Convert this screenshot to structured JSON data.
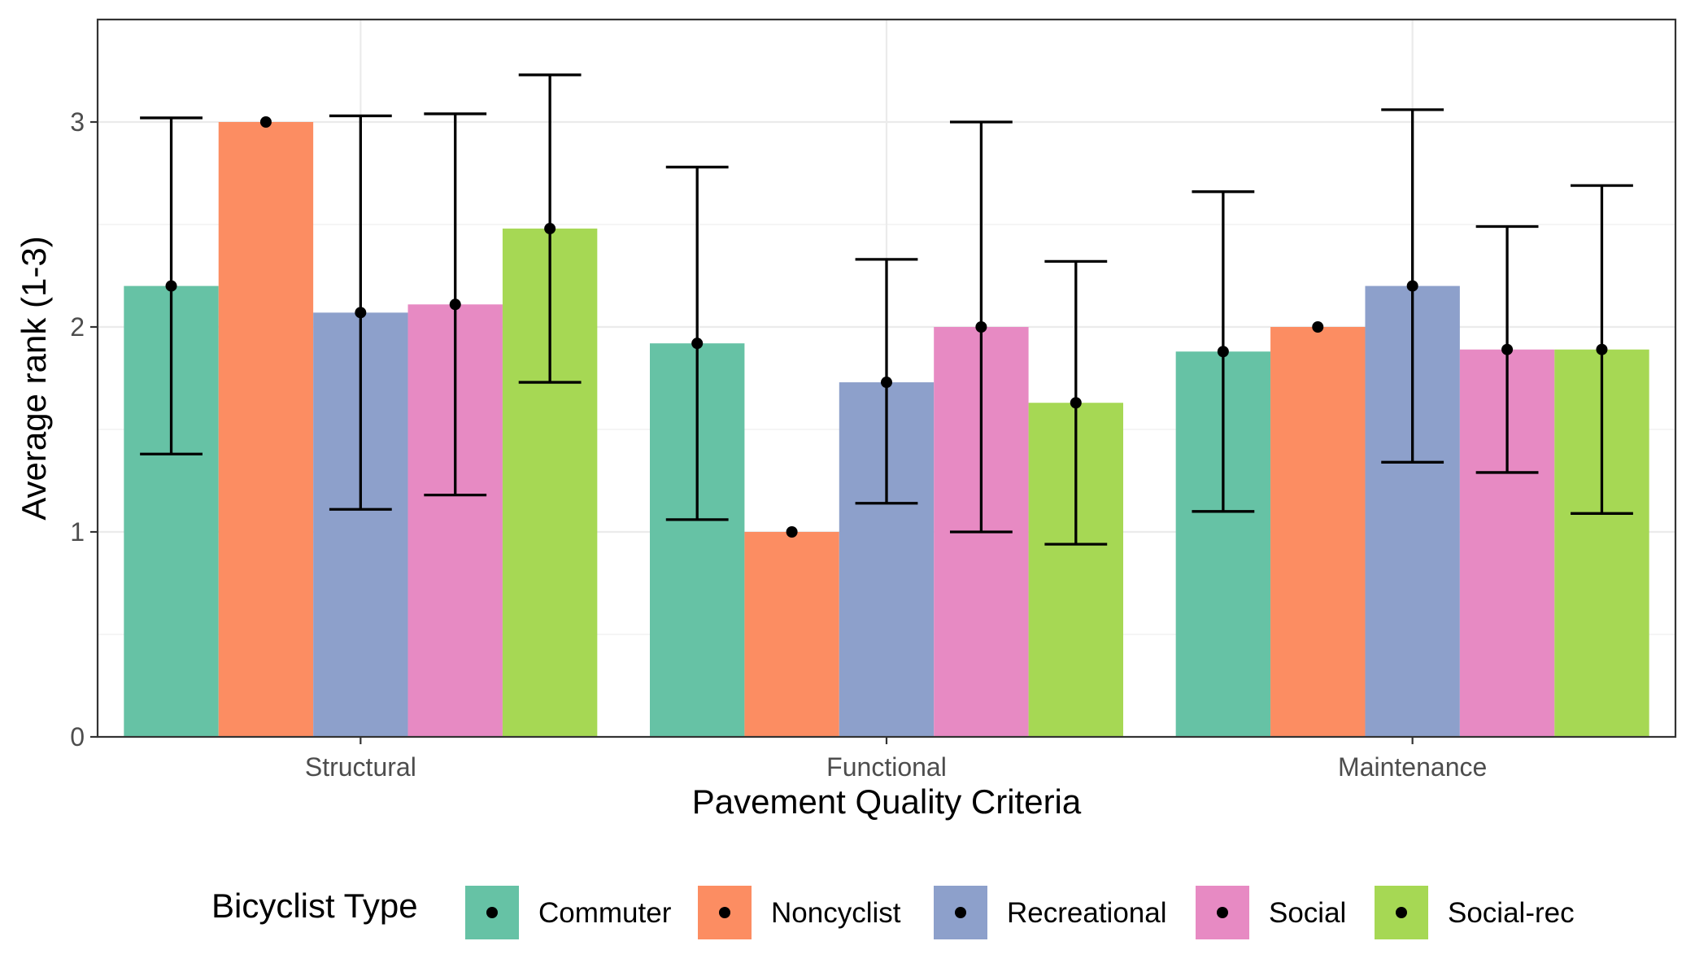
{
  "chart_data": {
    "type": "bar",
    "xlabel": "Pavement Quality Criteria",
    "ylabel": "Average rank (1-3)",
    "categories": [
      "Structural",
      "Functional",
      "Maintenance"
    ],
    "ylim": [
      0,
      3.5
    ],
    "yticks": [
      0,
      1,
      2,
      3
    ],
    "grid": true,
    "legend": {
      "title": "Bicyclist Type",
      "position": "bottom"
    },
    "series": [
      {
        "name": "Commuter",
        "color": "#66C2A5",
        "values": [
          2.2,
          1.92,
          1.88
        ],
        "error_low": [
          1.38,
          1.06,
          1.1
        ],
        "error_high": [
          3.02,
          2.78,
          2.66
        ]
      },
      {
        "name": "Noncyclist",
        "color": "#FC8D62",
        "values": [
          3.0,
          1.0,
          2.0
        ],
        "error_low": [
          3.0,
          1.0,
          2.0
        ],
        "error_high": [
          3.0,
          1.0,
          2.0
        ]
      },
      {
        "name": "Recreational",
        "color": "#8DA0CB",
        "values": [
          2.07,
          1.73,
          2.2
        ],
        "error_low": [
          1.11,
          1.14,
          1.34
        ],
        "error_high": [
          3.03,
          2.33,
          3.06
        ]
      },
      {
        "name": "Social",
        "color": "#E78AC3",
        "values": [
          2.11,
          2.0,
          1.89
        ],
        "error_low": [
          1.18,
          1.0,
          1.29
        ],
        "error_high": [
          3.04,
          3.0,
          2.49
        ]
      },
      {
        "name": "Social-rec",
        "color": "#A6D854",
        "values": [
          2.48,
          1.63,
          1.89
        ],
        "error_low": [
          1.73,
          0.94,
          1.09
        ],
        "error_high": [
          3.23,
          2.32,
          2.69
        ]
      }
    ]
  }
}
